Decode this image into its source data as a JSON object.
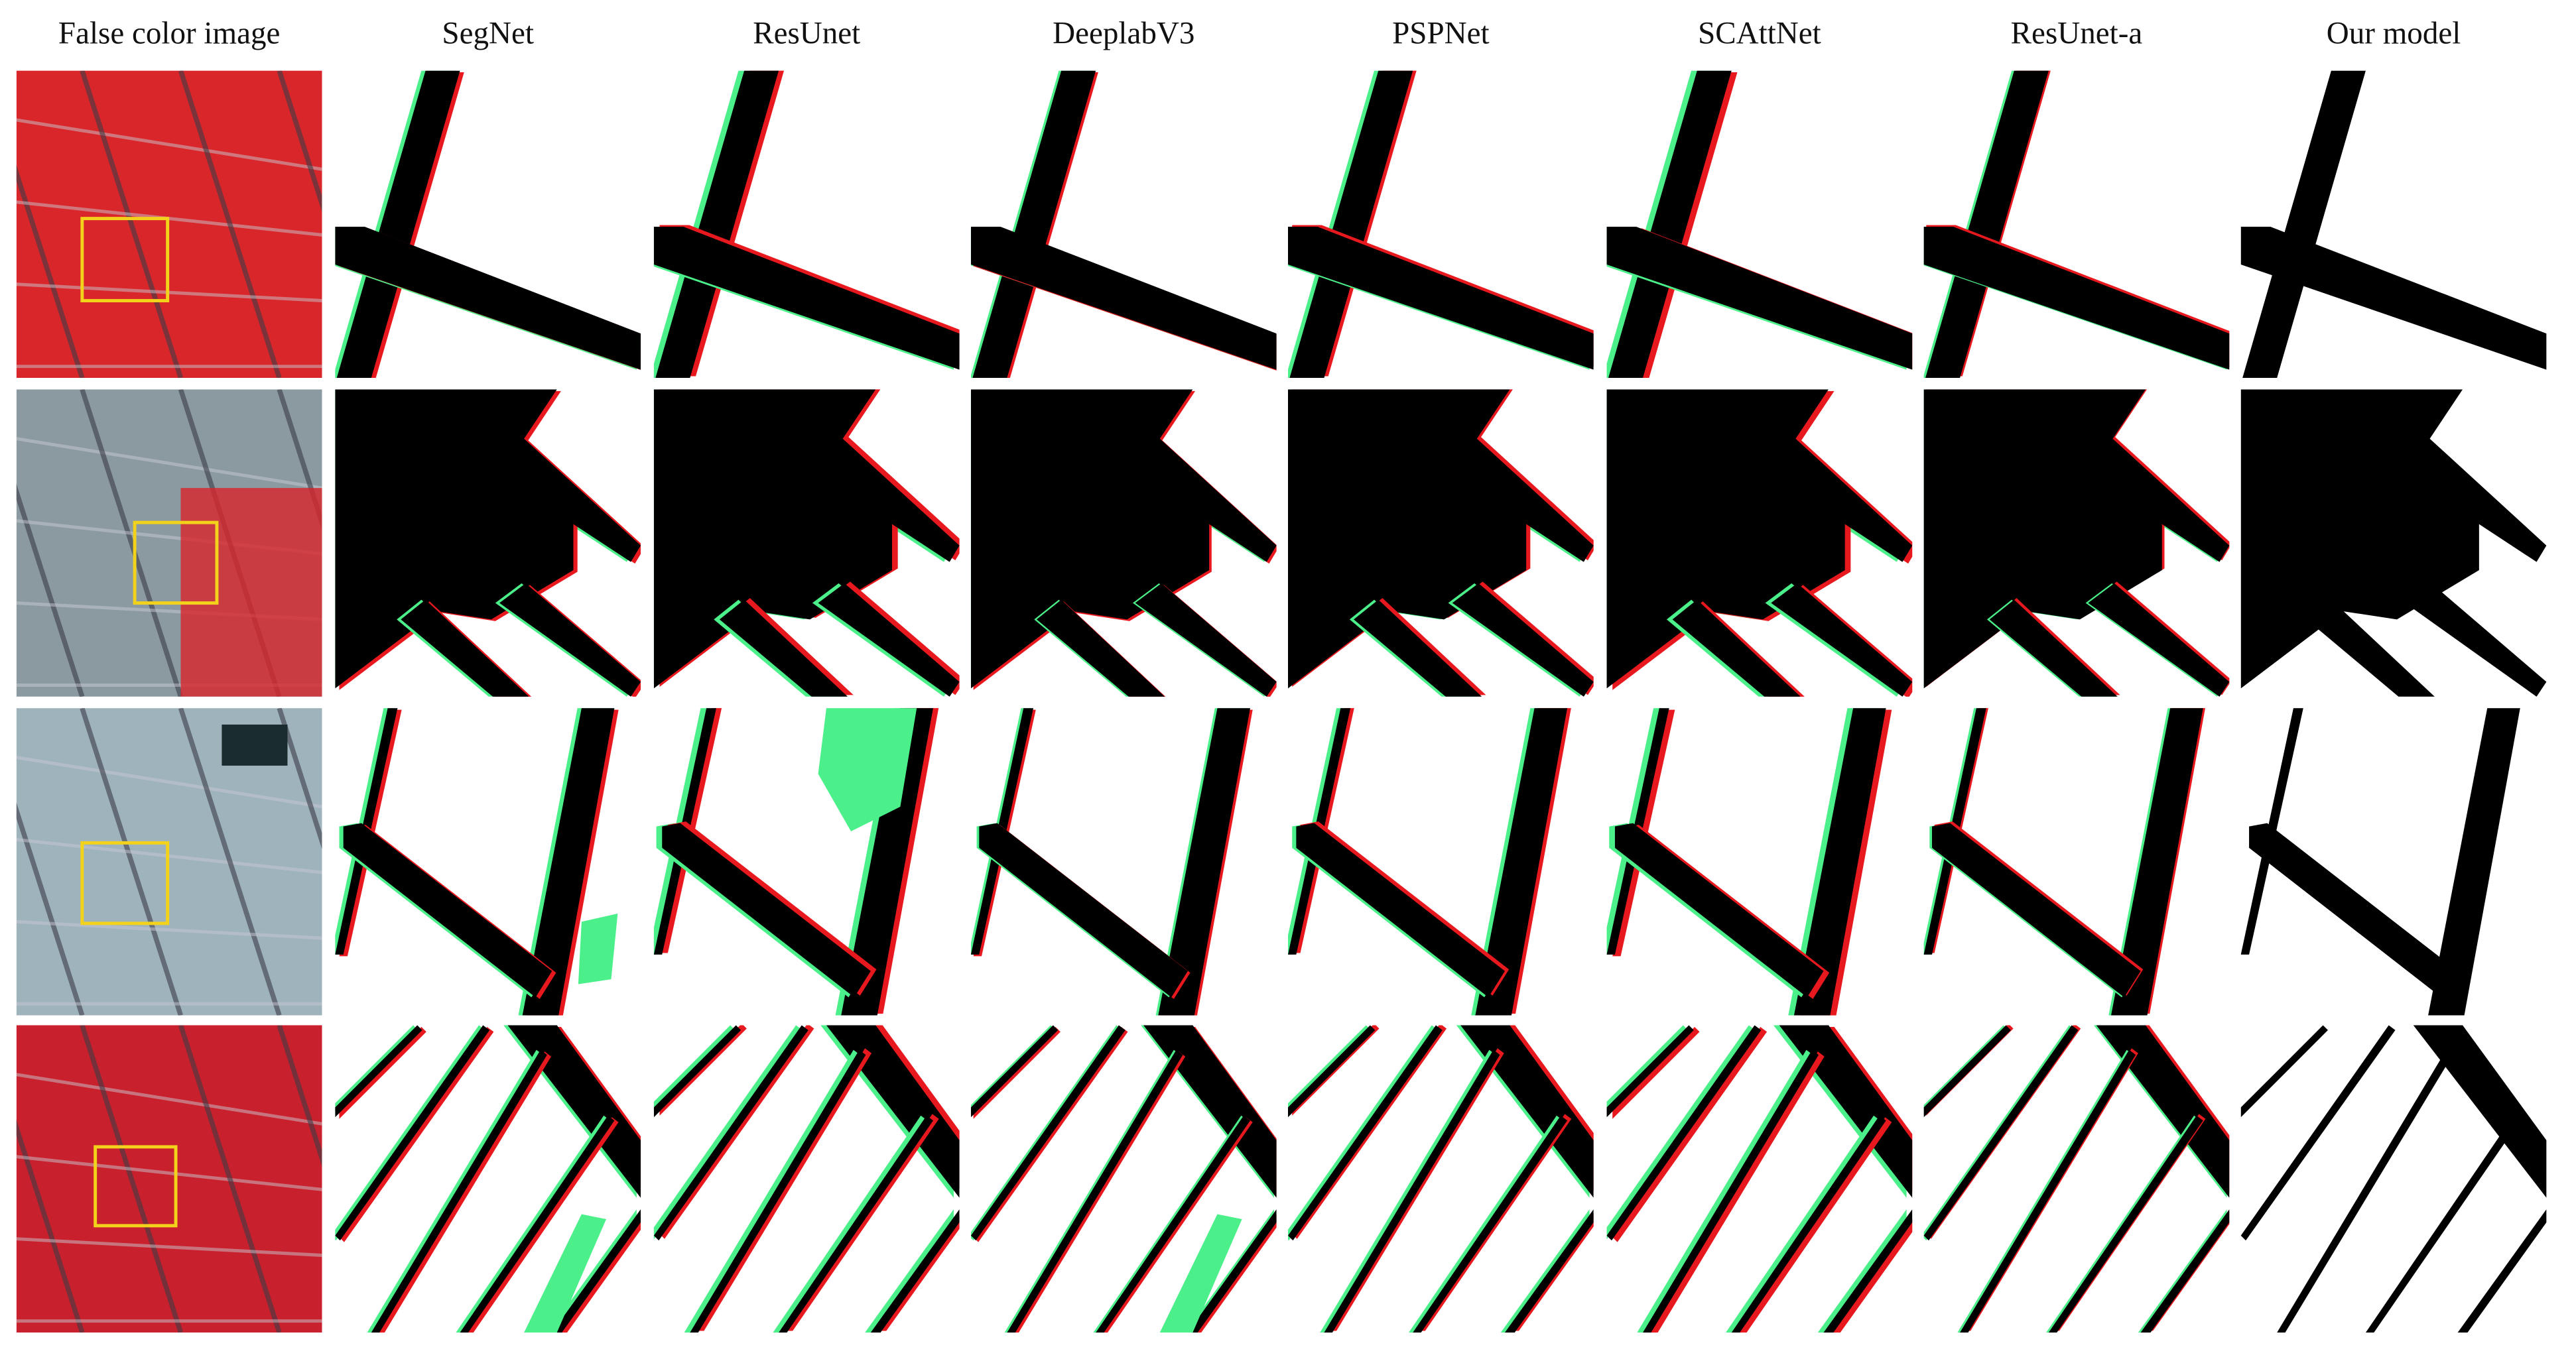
{
  "columns": [
    "False color image",
    "SegNet",
    "ResUnet",
    "DeeplabV3",
    "PSPNet",
    "SCAttNet",
    "ResUnet-a",
    "Our model"
  ]
}
